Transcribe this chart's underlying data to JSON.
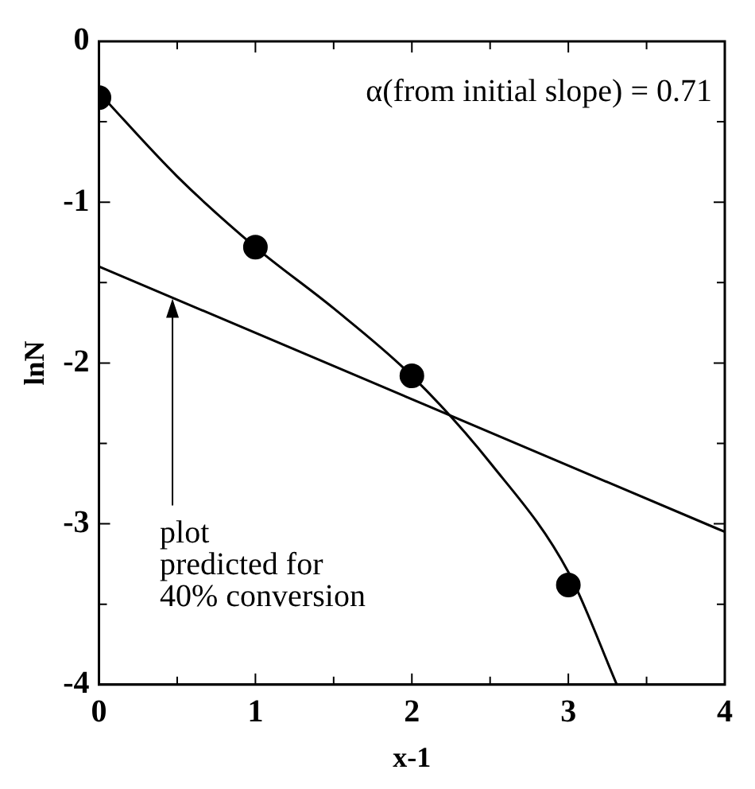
{
  "chart_data": {
    "type": "line",
    "xlabel": "x-1",
    "ylabel": "lnN",
    "xlim": [
      0,
      4
    ],
    "ylim": [
      -4,
      0
    ],
    "xticks": [
      0,
      {
        "value": 0.5,
        "label": null
      },
      1,
      {
        "value": 1.5,
        "label": null
      },
      2,
      {
        "value": 2.5,
        "label": null
      },
      3,
      {
        "value": 3.5,
        "label": null
      },
      4
    ],
    "yticks": [
      -4,
      {
        "value": -3.5,
        "label": null
      },
      -3,
      {
        "value": -2.5,
        "label": null
      },
      -2,
      {
        "value": -1.5,
        "label": null
      },
      -1,
      {
        "value": -0.5,
        "label": null
      },
      0
    ],
    "grid": false,
    "legend": false,
    "series": [
      {
        "type": "scatter",
        "marker": "circle",
        "color": "#000000",
        "x": [
          0,
          1,
          2,
          3
        ],
        "values": [
          -0.35,
          -1.28,
          -2.08,
          -3.38
        ]
      },
      {
        "marker": "none",
        "color": "#000000",
        "x": [
          0,
          0.5,
          1,
          1.5,
          2,
          2.5,
          3,
          3.31
        ],
        "values": [
          -0.32,
          -0.84,
          -1.28,
          -1.66,
          -2.08,
          -2.62,
          -3.3,
          -4
        ]
      },
      {
        "marker": "none",
        "color": "#000000",
        "x": [
          0,
          4
        ],
        "values": [
          -1.4,
          -3.05
        ]
      }
    ],
    "annotations": [
      "α(from initial slope) = 0.71",
      {
        "text": "plot\npredicted for\n40% conversion",
        "x": 0.47,
        "y": -1.6
      }
    ]
  }
}
